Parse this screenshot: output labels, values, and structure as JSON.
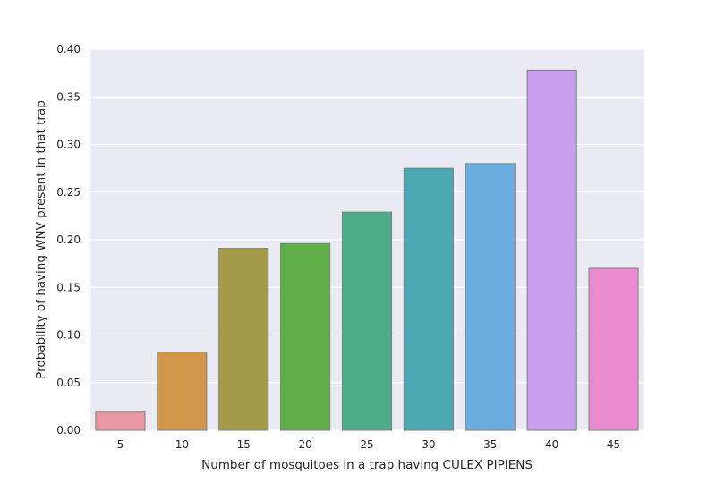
{
  "chart_data": {
    "type": "bar",
    "title": "",
    "xlabel": "Number of mosquitoes in a trap having CULEX PIPIENS",
    "ylabel": "Probability of having WNV present in that trap",
    "categories": [
      "5",
      "10",
      "15",
      "20",
      "25",
      "30",
      "35",
      "40",
      "45"
    ],
    "values": [
      0.019,
      0.082,
      0.191,
      0.196,
      0.229,
      0.275,
      0.28,
      0.378,
      0.17
    ],
    "ylim": [
      0.0,
      0.4
    ],
    "yticks": [
      "0.00",
      "0.05",
      "0.10",
      "0.15",
      "0.20",
      "0.25",
      "0.30",
      "0.35",
      "0.40"
    ],
    "grid": true,
    "legend": "none",
    "colors": [
      "#ea96a3",
      "#d19649",
      "#a39b48",
      "#60ae47",
      "#4bad88",
      "#4ca8b3",
      "#69addf",
      "#c69fed",
      "#ea8bd0"
    ],
    "background": "#eaeaf2",
    "edge_color": "#808080"
  }
}
